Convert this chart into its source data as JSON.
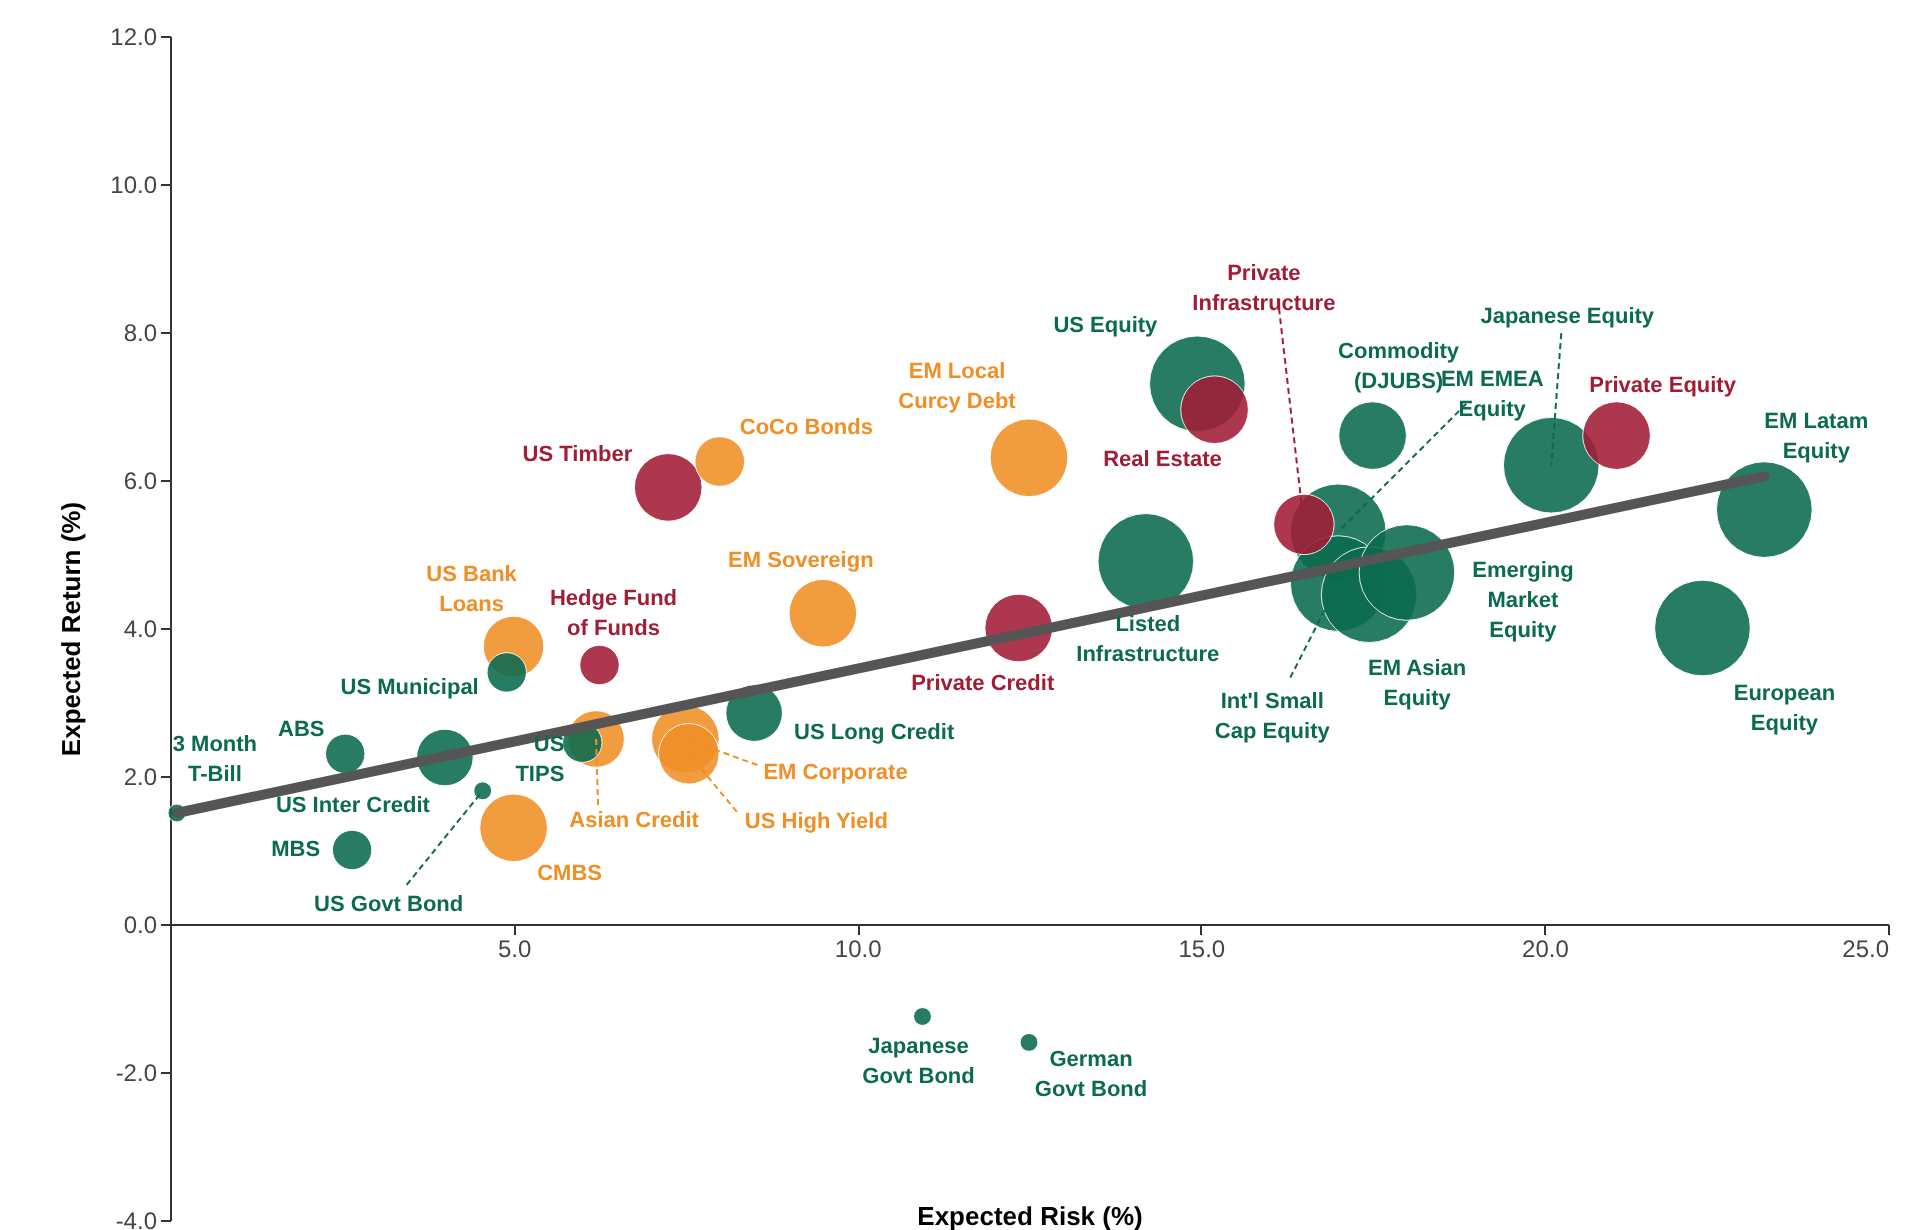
{
  "chart_data": {
    "type": "bubble",
    "xlabel": "Expected Risk (%)",
    "ylabel": "Expected Return (%)",
    "xlim": [
      0,
      25
    ],
    "ylim": [
      -4,
      12
    ],
    "xticks": [
      {
        "value": 5,
        "label": "5.0"
      },
      {
        "value": 10,
        "label": "10.0"
      },
      {
        "value": 15,
        "label": "15.0"
      },
      {
        "value": 20,
        "label": "20.0"
      },
      {
        "value": 25,
        "label": "25.0"
      }
    ],
    "yticks": [
      {
        "value": -4,
        "label": "-4.0"
      },
      {
        "value": -2,
        "label": "-2.0"
      },
      {
        "value": 0,
        "label": "0.0"
      },
      {
        "value": 2,
        "label": "2.0"
      },
      {
        "value": 4,
        "label": "4.0"
      },
      {
        "value": 6,
        "label": "6.0"
      },
      {
        "value": 8,
        "label": "8.0"
      },
      {
        "value": 10,
        "label": "10.0"
      },
      {
        "value": 12,
        "label": "12.0"
      }
    ],
    "series": [
      {
        "name": "3 Month T-Bill",
        "color": "#0b6b4f",
        "x": [
          0.1
        ],
        "values": [
          1.5
        ],
        "sizes": [
          0.035
        ]
      },
      {
        "name": "ABS",
        "color": "#0b6b4f",
        "x": [
          2.55
        ],
        "values": [
          2.3
        ],
        "sizes": [
          0.17
        ]
      },
      {
        "name": "US Municipal",
        "color": "#0b6b4f",
        "x": [
          4.9
        ],
        "values": [
          3.4
        ],
        "sizes": [
          0.17
        ]
      },
      {
        "name": "US Bank Loans",
        "color": "#ef8f25",
        "x": [
          5.0
        ],
        "values": [
          3.75
        ],
        "sizes": [
          0.4
        ]
      },
      {
        "name": "US Inter Credit",
        "color": "#0b6b4f",
        "x": [
          4.0
        ],
        "values": [
          2.25
        ],
        "sizes": [
          0.35
        ]
      },
      {
        "name": "MBS",
        "color": "#0b6b4f",
        "x": [
          2.65
        ],
        "values": [
          1.0
        ],
        "sizes": [
          0.17
        ]
      },
      {
        "name": "US Govt Bond",
        "color": "#0b6b4f",
        "x": [
          4.55
        ],
        "values": [
          1.8
        ],
        "sizes": [
          0.035
        ]
      },
      {
        "name": "CMBS",
        "color": "#ef8f25",
        "x": [
          5.0
        ],
        "values": [
          1.3
        ],
        "sizes": [
          0.5
        ]
      },
      {
        "name": "US TIPS",
        "color": "#0b6b4f",
        "x": [
          6.0
        ],
        "values": [
          2.45
        ],
        "sizes": [
          0.17
        ]
      },
      {
        "name": "Asian Credit",
        "color": "#ef8f25",
        "x": [
          6.2
        ],
        "values": [
          2.5
        ],
        "sizes": [
          0.35
        ]
      },
      {
        "name": "Hedge Fund of Funds",
        "color": "#a21c36",
        "x": [
          6.25
        ],
        "values": [
          3.5
        ],
        "sizes": [
          0.17
        ]
      },
      {
        "name": "EM Corporate",
        "color": "#ef8f25",
        "x": [
          7.5
        ],
        "values": [
          2.5
        ],
        "sizes": [
          0.5
        ]
      },
      {
        "name": "US High Yield",
        "color": "#ef8f25",
        "x": [
          7.55
        ],
        "values": [
          2.3
        ],
        "sizes": [
          0.4
        ]
      },
      {
        "name": "US Long Credit",
        "color": "#0b6b4f",
        "x": [
          8.5
        ],
        "values": [
          2.85
        ],
        "sizes": [
          0.35
        ]
      },
      {
        "name": "EM Sovereign",
        "color": "#ef8f25",
        "x": [
          9.5
        ],
        "values": [
          4.2
        ],
        "sizes": [
          0.5
        ]
      },
      {
        "name": "US Timber",
        "color": "#a21c36",
        "x": [
          7.25
        ],
        "values": [
          5.9
        ],
        "sizes": [
          0.5
        ]
      },
      {
        "name": "CoCo Bonds",
        "color": "#ef8f25",
        "x": [
          8.0
        ],
        "values": [
          6.25
        ],
        "sizes": [
          0.27
        ]
      },
      {
        "name": "EM Local Curcy Debt",
        "color": "#ef8f25",
        "x": [
          12.5
        ],
        "values": [
          6.3
        ],
        "sizes": [
          0.66
        ]
      },
      {
        "name": "Private Credit",
        "color": "#a21c36",
        "x": [
          12.35
        ],
        "values": [
          4.0
        ],
        "sizes": [
          0.5
        ]
      },
      {
        "name": "Listed Infrastructure",
        "color": "#0b6b4f",
        "x": [
          14.2
        ],
        "values": [
          4.9
        ],
        "sizes": [
          1
        ]
      },
      {
        "name": "US Equity",
        "color": "#0b6b4f",
        "x": [
          14.95
        ],
        "values": [
          7.3
        ],
        "sizes": [
          1
        ]
      },
      {
        "name": "Real Estate",
        "color": "#a21c36",
        "x": [
          15.2
        ],
        "values": [
          6.95
        ],
        "sizes": [
          0.5
        ]
      },
      {
        "name": "Private Infrastructure",
        "color": "#a21c36",
        "x": [
          16.5
        ],
        "values": [
          5.4
        ],
        "sizes": [
          0.4
        ]
      },
      {
        "name": "Commodity (DJUBS)",
        "color": "#0b6b4f",
        "x": [
          17.5
        ],
        "values": [
          6.6
        ],
        "sizes": [
          0.5
        ]
      },
      {
        "name": "EM EMEA Equity",
        "color": "#0b6b4f",
        "x": [
          17.0
        ],
        "values": [
          5.3
        ],
        "sizes": [
          1
        ]
      },
      {
        "name": "Int'l Small Cap Equity",
        "color": "#0b6b4f",
        "x": [
          17.0
        ],
        "values": [
          4.6
        ],
        "sizes": [
          1
        ]
      },
      {
        "name": "EM Asian Equity",
        "color": "#0b6b4f",
        "x": [
          17.45
        ],
        "values": [
          4.45
        ],
        "sizes": [
          1
        ]
      },
      {
        "name": "Emerging Market Equity",
        "color": "#0b6b4f",
        "x": [
          18.0
        ],
        "values": [
          4.75
        ],
        "sizes": [
          1
        ]
      },
      {
        "name": "Japanese Equity",
        "color": "#0b6b4f",
        "x": [
          20.1
        ],
        "values": [
          6.2
        ],
        "sizes": [
          1
        ]
      },
      {
        "name": "Private Equity",
        "color": "#a21c36",
        "x": [
          21.05
        ],
        "values": [
          6.6
        ],
        "sizes": [
          0.5
        ]
      },
      {
        "name": "EM Latam Equity",
        "color": "#0b6b4f",
        "x": [
          23.2
        ],
        "values": [
          5.6
        ],
        "sizes": [
          1
        ]
      },
      {
        "name": "European Equity",
        "color": "#0b6b4f",
        "x": [
          22.3
        ],
        "values": [
          4.0
        ],
        "sizes": [
          1
        ]
      },
      {
        "name": "Japanese Govt Bond",
        "color": "#0b6b4f",
        "x": [
          10.95
        ],
        "values": [
          -1.25
        ],
        "sizes": [
          0.035
        ]
      },
      {
        "name": "German Govt Bond",
        "color": "#0b6b4f",
        "x": [
          12.5
        ],
        "values": [
          -1.6
        ],
        "sizes": [
          0.035
        ]
      },
      {
        "type": "line",
        "color": "#555555",
        "x": [
          0.1,
          23.2
        ],
        "values": [
          1.5,
          6.05
        ]
      }
    ]
  }
}
